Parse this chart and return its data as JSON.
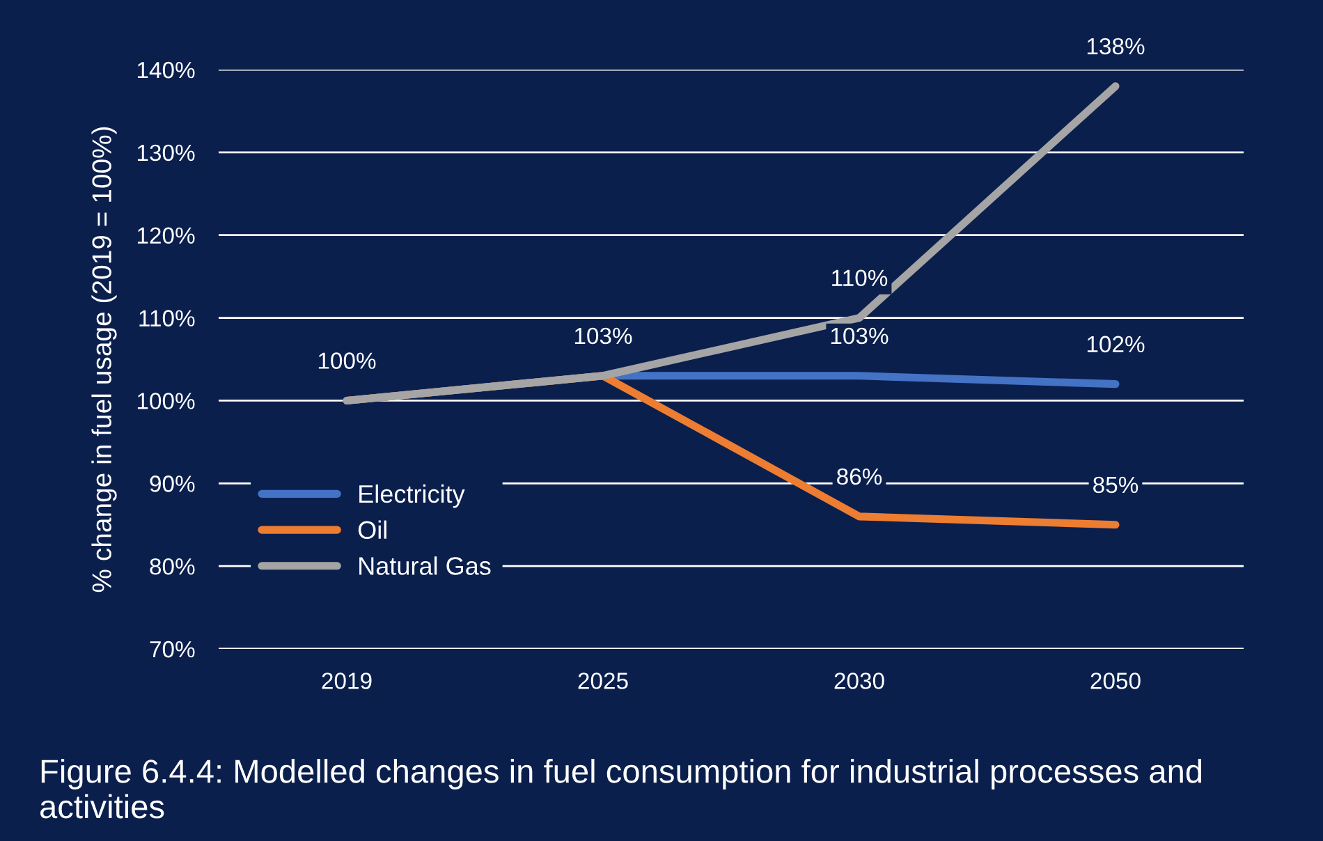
{
  "chart_data": {
    "type": "line",
    "ylabel": "% change in fuel usage (2019 = 100%)",
    "categories": [
      "2019",
      "2025",
      "2030",
      "2050"
    ],
    "series": [
      {
        "name": "Electricity",
        "color": "#4472c4",
        "values": [
          100,
          103,
          103,
          102
        ],
        "value_labels": [
          "100%",
          "103%",
          "103%",
          "102%"
        ]
      },
      {
        "name": "Oil",
        "color": "#ed7d31",
        "values": [
          100,
          103,
          86,
          85
        ],
        "value_labels": [
          null,
          null,
          "86%",
          "85%"
        ]
      },
      {
        "name": "Natural Gas",
        "color": "#a5a5a5",
        "values": [
          100,
          103,
          110,
          138
        ],
        "value_labels": [
          null,
          null,
          "110%",
          "138%"
        ]
      }
    ],
    "ylim": [
      70,
      140
    ],
    "yticks": [
      {
        "value": 70,
        "label": "70%"
      },
      {
        "value": 80,
        "label": "80%"
      },
      {
        "value": 90,
        "label": "90%"
      },
      {
        "value": 100,
        "label": "100%"
      },
      {
        "value": 110,
        "label": "110%"
      },
      {
        "value": 120,
        "label": "120%"
      },
      {
        "value": 130,
        "label": "130%"
      },
      {
        "value": 140,
        "label": "140%"
      }
    ],
    "grid": "y",
    "legend": "lower left",
    "marker": "none",
    "line_style": "solid",
    "annotations": [
      "Figure 6.4.4: Modelled changes in fuel consumption for industrial processes and activities"
    ]
  }
}
